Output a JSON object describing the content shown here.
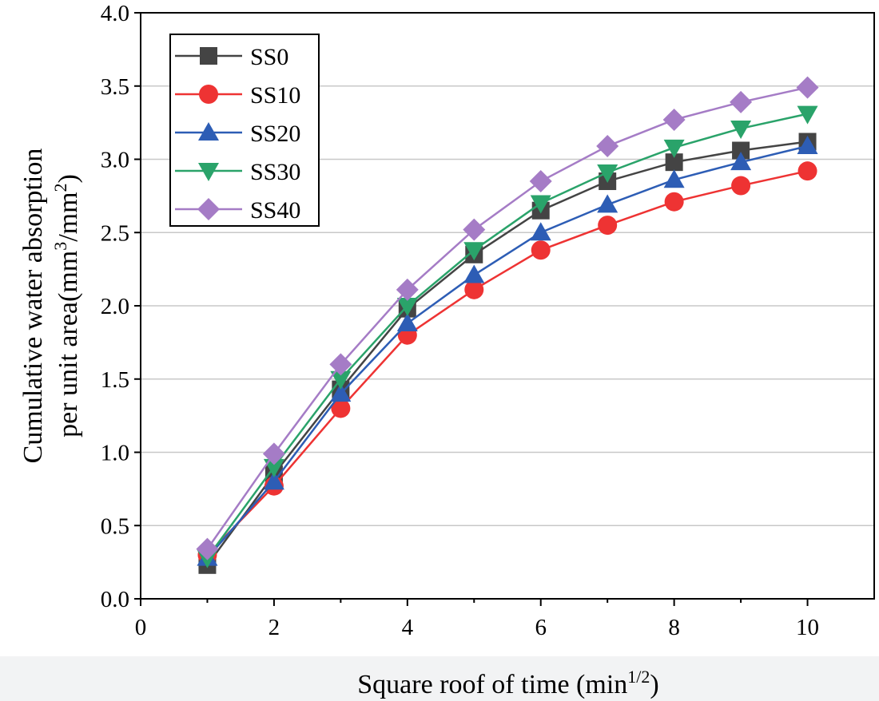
{
  "chart_data": {
    "type": "line",
    "xlabel": "Square roof of time (min",
    "xlabel_sup": "1/2",
    "xlabel_end": ")",
    "ylabel_line1": "Cumulative water absorption",
    "ylabel_line2": "per unit area(mm",
    "ylabel_sup1": "3",
    "ylabel_mid": "/mm",
    "ylabel_sup2": "2",
    "ylabel_end": ")",
    "xlim": [
      0,
      11
    ],
    "ylim": [
      0,
      4.0
    ],
    "xticks": [
      0,
      2,
      4,
      6,
      8,
      10
    ],
    "xtick_labels": [
      "0",
      "2",
      "4",
      "6",
      "8",
      "10"
    ],
    "yticks": [
      0,
      0.5,
      1.0,
      1.5,
      2.0,
      2.5,
      3.0,
      3.5,
      4.0
    ],
    "ytick_labels": [
      "0.0",
      "0.5",
      "1.0",
      "1.5",
      "2.0",
      "2.5",
      "3.0",
      "3.5",
      "4.0"
    ],
    "grid": "horizontal",
    "legend_position": "top-left",
    "x": [
      1,
      2,
      3,
      4,
      5,
      6,
      7,
      8,
      9,
      10
    ],
    "series": [
      {
        "name": "SS0",
        "color": "#444444",
        "marker": "square",
        "values": [
          0.23,
          0.85,
          1.43,
          1.98,
          2.35,
          2.65,
          2.85,
          2.98,
          3.06,
          3.12
        ]
      },
      {
        "name": "SS10",
        "color": "#ee3333",
        "marker": "circle",
        "values": [
          0.3,
          0.77,
          1.3,
          1.8,
          2.11,
          2.38,
          2.55,
          2.71,
          2.82,
          2.92
        ]
      },
      {
        "name": "SS20",
        "color": "#2d5db5",
        "marker": "triangle-up",
        "values": [
          0.28,
          0.8,
          1.4,
          1.88,
          2.21,
          2.5,
          2.69,
          2.86,
          2.98,
          3.09
        ]
      },
      {
        "name": "SS30",
        "color": "#2aa36a",
        "marker": "triangle-down",
        "values": [
          0.28,
          0.9,
          1.5,
          2.0,
          2.38,
          2.7,
          2.91,
          3.08,
          3.21,
          3.31
        ]
      },
      {
        "name": "SS40",
        "color": "#a57cc6",
        "marker": "diamond",
        "values": [
          0.34,
          0.99,
          1.6,
          2.11,
          2.52,
          2.85,
          3.09,
          3.27,
          3.39,
          3.49
        ]
      }
    ]
  }
}
